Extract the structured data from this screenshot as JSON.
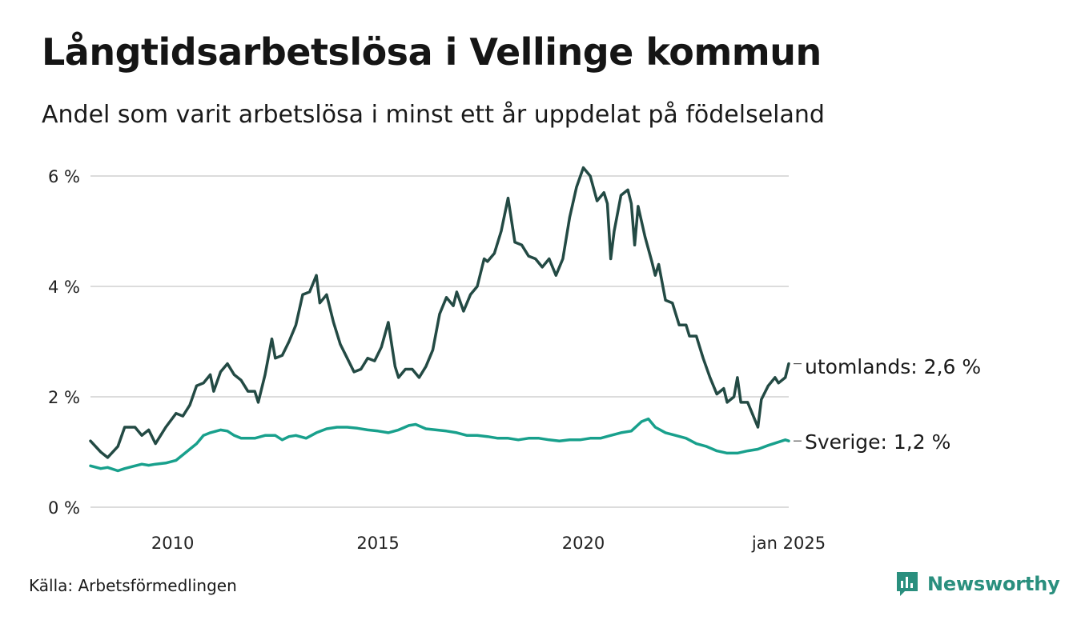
{
  "title": "Långtidsarbetslösa i Vellinge kommun",
  "subtitle": "Andel som varit arbetslösa i minst ett år uppdelat på födelseland",
  "source": "Källa: Arbetsförmedlingen",
  "brand": {
    "name": "Newsworthy",
    "color": "#2a8f7e",
    "icon": "bar-chart-logo-icon"
  },
  "chart_data": {
    "type": "line",
    "ylim": [
      0,
      6
    ],
    "xlim": [
      "2008-01",
      "2025-01"
    ],
    "yticks": [
      {
        "value": 0,
        "label": "0 %"
      },
      {
        "value": 2,
        "label": "2 %"
      },
      {
        "value": 4,
        "label": "4 %"
      },
      {
        "value": 6,
        "label": "6 %"
      }
    ],
    "xticks": [
      {
        "value": "2010-01",
        "label": "2010"
      },
      {
        "value": "2015-01",
        "label": "2015"
      },
      {
        "value": "2020-01",
        "label": "2020"
      },
      {
        "value": "2025-01",
        "label": "jan 2025"
      }
    ],
    "grid": "horizontal",
    "series": [
      {
        "key": "utomlands",
        "end_label": "utomlands: 2,6 %",
        "color": "#234a44",
        "points": [
          [
            "2008-01",
            1.2
          ],
          [
            "2008-04",
            1.0
          ],
          [
            "2008-06",
            0.9
          ],
          [
            "2008-09",
            1.1
          ],
          [
            "2008-11",
            1.45
          ],
          [
            "2009-02",
            1.45
          ],
          [
            "2009-04",
            1.3
          ],
          [
            "2009-06",
            1.4
          ],
          [
            "2009-08",
            1.15
          ],
          [
            "2009-11",
            1.45
          ],
          [
            "2010-02",
            1.7
          ],
          [
            "2010-04",
            1.65
          ],
          [
            "2010-06",
            1.85
          ],
          [
            "2010-08",
            2.2
          ],
          [
            "2010-10",
            2.25
          ],
          [
            "2010-12",
            2.4
          ],
          [
            "2011-01",
            2.1
          ],
          [
            "2011-03",
            2.45
          ],
          [
            "2011-05",
            2.6
          ],
          [
            "2011-07",
            2.4
          ],
          [
            "2011-09",
            2.3
          ],
          [
            "2011-11",
            2.1
          ],
          [
            "2012-01",
            2.1
          ],
          [
            "2012-02",
            1.9
          ],
          [
            "2012-04",
            2.4
          ],
          [
            "2012-06",
            3.05
          ],
          [
            "2012-07",
            2.7
          ],
          [
            "2012-09",
            2.75
          ],
          [
            "2012-11",
            3.0
          ],
          [
            "2013-01",
            3.3
          ],
          [
            "2013-03",
            3.85
          ],
          [
            "2013-05",
            3.9
          ],
          [
            "2013-07",
            4.2
          ],
          [
            "2013-08",
            3.7
          ],
          [
            "2013-10",
            3.85
          ],
          [
            "2013-12",
            3.35
          ],
          [
            "2014-02",
            2.95
          ],
          [
            "2014-04",
            2.7
          ],
          [
            "2014-06",
            2.45
          ],
          [
            "2014-08",
            2.5
          ],
          [
            "2014-10",
            2.7
          ],
          [
            "2014-12",
            2.65
          ],
          [
            "2015-02",
            2.9
          ],
          [
            "2015-04",
            3.35
          ],
          [
            "2015-06",
            2.55
          ],
          [
            "2015-07",
            2.35
          ],
          [
            "2015-09",
            2.5
          ],
          [
            "2015-11",
            2.5
          ],
          [
            "2016-01",
            2.35
          ],
          [
            "2016-03",
            2.55
          ],
          [
            "2016-05",
            2.85
          ],
          [
            "2016-07",
            3.5
          ],
          [
            "2016-09",
            3.8
          ],
          [
            "2016-11",
            3.65
          ],
          [
            "2016-12",
            3.9
          ],
          [
            "2017-02",
            3.55
          ],
          [
            "2017-04",
            3.85
          ],
          [
            "2017-06",
            4.0
          ],
          [
            "2017-08",
            4.5
          ],
          [
            "2017-09",
            4.45
          ],
          [
            "2017-11",
            4.6
          ],
          [
            "2018-01",
            5.0
          ],
          [
            "2018-03",
            5.6
          ],
          [
            "2018-05",
            4.8
          ],
          [
            "2018-07",
            4.75
          ],
          [
            "2018-09",
            4.55
          ],
          [
            "2018-11",
            4.5
          ],
          [
            "2019-01",
            4.35
          ],
          [
            "2019-03",
            4.5
          ],
          [
            "2019-05",
            4.2
          ],
          [
            "2019-07",
            4.5
          ],
          [
            "2019-09",
            5.25
          ],
          [
            "2019-11",
            5.8
          ],
          [
            "2020-01",
            6.15
          ],
          [
            "2020-03",
            6.0
          ],
          [
            "2020-05",
            5.55
          ],
          [
            "2020-07",
            5.7
          ],
          [
            "2020-08",
            5.5
          ],
          [
            "2020-09",
            4.5
          ],
          [
            "2020-10",
            5.0
          ],
          [
            "2020-12",
            5.65
          ],
          [
            "2021-02",
            5.75
          ],
          [
            "2021-03",
            5.5
          ],
          [
            "2021-04",
            4.75
          ],
          [
            "2021-05",
            5.45
          ],
          [
            "2021-07",
            4.9
          ],
          [
            "2021-09",
            4.45
          ],
          [
            "2021-10",
            4.2
          ],
          [
            "2021-11",
            4.4
          ],
          [
            "2022-01",
            3.75
          ],
          [
            "2022-03",
            3.7
          ],
          [
            "2022-05",
            3.3
          ],
          [
            "2022-07",
            3.3
          ],
          [
            "2022-08",
            3.1
          ],
          [
            "2022-10",
            3.1
          ],
          [
            "2022-12",
            2.7
          ],
          [
            "2023-02",
            2.35
          ],
          [
            "2023-04",
            2.05
          ],
          [
            "2023-06",
            2.15
          ],
          [
            "2023-07",
            1.9
          ],
          [
            "2023-09",
            2.0
          ],
          [
            "2023-10",
            2.35
          ],
          [
            "2023-11",
            1.9
          ],
          [
            "2024-01",
            1.9
          ],
          [
            "2024-02",
            1.75
          ],
          [
            "2024-04",
            1.45
          ],
          [
            "2024-05",
            1.95
          ],
          [
            "2024-07",
            2.2
          ],
          [
            "2024-09",
            2.35
          ],
          [
            "2024-10",
            2.25
          ],
          [
            "2024-12",
            2.35
          ],
          [
            "2025-01",
            2.6
          ]
        ]
      },
      {
        "key": "Sverige",
        "end_label": "Sverige: 1,2 %",
        "color": "#18a08c",
        "points": [
          [
            "2008-01",
            0.75
          ],
          [
            "2008-04",
            0.7
          ],
          [
            "2008-06",
            0.72
          ],
          [
            "2008-09",
            0.66
          ],
          [
            "2008-11",
            0.7
          ],
          [
            "2009-02",
            0.75
          ],
          [
            "2009-04",
            0.78
          ],
          [
            "2009-06",
            0.76
          ],
          [
            "2009-08",
            0.78
          ],
          [
            "2009-11",
            0.8
          ],
          [
            "2010-02",
            0.85
          ],
          [
            "2010-04",
            0.95
          ],
          [
            "2010-06",
            1.05
          ],
          [
            "2010-08",
            1.15
          ],
          [
            "2010-10",
            1.3
          ],
          [
            "2010-12",
            1.35
          ],
          [
            "2011-03",
            1.4
          ],
          [
            "2011-05",
            1.38
          ],
          [
            "2011-07",
            1.3
          ],
          [
            "2011-09",
            1.25
          ],
          [
            "2011-11",
            1.25
          ],
          [
            "2012-01",
            1.25
          ],
          [
            "2012-04",
            1.3
          ],
          [
            "2012-07",
            1.3
          ],
          [
            "2012-09",
            1.22
          ],
          [
            "2012-11",
            1.28
          ],
          [
            "2013-01",
            1.3
          ],
          [
            "2013-04",
            1.25
          ],
          [
            "2013-07",
            1.35
          ],
          [
            "2013-10",
            1.42
          ],
          [
            "2014-01",
            1.45
          ],
          [
            "2014-04",
            1.45
          ],
          [
            "2014-07",
            1.43
          ],
          [
            "2014-10",
            1.4
          ],
          [
            "2015-01",
            1.38
          ],
          [
            "2015-04",
            1.35
          ],
          [
            "2015-07",
            1.4
          ],
          [
            "2015-10",
            1.48
          ],
          [
            "2015-12",
            1.5
          ],
          [
            "2016-03",
            1.42
          ],
          [
            "2016-06",
            1.4
          ],
          [
            "2016-09",
            1.38
          ],
          [
            "2016-12",
            1.35
          ],
          [
            "2017-03",
            1.3
          ],
          [
            "2017-06",
            1.3
          ],
          [
            "2017-09",
            1.28
          ],
          [
            "2017-12",
            1.25
          ],
          [
            "2018-03",
            1.25
          ],
          [
            "2018-06",
            1.22
          ],
          [
            "2018-09",
            1.25
          ],
          [
            "2018-12",
            1.25
          ],
          [
            "2019-03",
            1.22
          ],
          [
            "2019-06",
            1.2
          ],
          [
            "2019-09",
            1.22
          ],
          [
            "2019-12",
            1.22
          ],
          [
            "2020-03",
            1.25
          ],
          [
            "2020-06",
            1.25
          ],
          [
            "2020-09",
            1.3
          ],
          [
            "2020-12",
            1.35
          ],
          [
            "2021-03",
            1.38
          ],
          [
            "2021-06",
            1.55
          ],
          [
            "2021-08",
            1.6
          ],
          [
            "2021-10",
            1.45
          ],
          [
            "2022-01",
            1.35
          ],
          [
            "2022-04",
            1.3
          ],
          [
            "2022-07",
            1.25
          ],
          [
            "2022-10",
            1.15
          ],
          [
            "2023-01",
            1.1
          ],
          [
            "2023-04",
            1.02
          ],
          [
            "2023-07",
            0.98
          ],
          [
            "2023-10",
            0.98
          ],
          [
            "2024-01",
            1.02
          ],
          [
            "2024-04",
            1.05
          ],
          [
            "2024-07",
            1.12
          ],
          [
            "2024-10",
            1.18
          ],
          [
            "2024-12",
            1.22
          ],
          [
            "2025-01",
            1.2
          ]
        ]
      }
    ]
  }
}
